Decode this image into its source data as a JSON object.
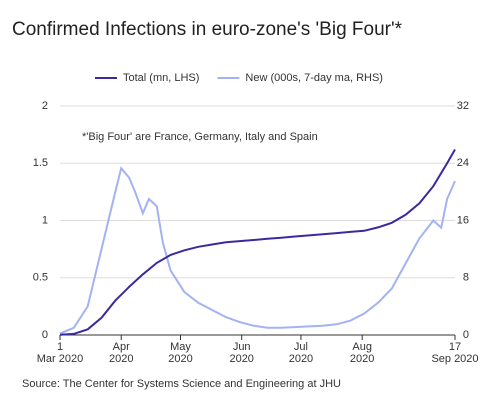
{
  "chart_data": {
    "type": "line",
    "title": "Confirmed Infections in euro-zone's 'Big Four'*",
    "annotation": "*'Big Four' are France, Germany, Italy and Spain",
    "source": "Source: The Center for Systems Science and Engineering at JHU",
    "xlim": [
      "2020-03-01",
      "2020-09-17"
    ],
    "xticks": [
      {
        "value": "2020-03-01",
        "label": "1\nMar 2020"
      },
      {
        "value": "2020-04",
        "label": "Apr\n2020"
      },
      {
        "value": "2020-05",
        "label": "May\n2020"
      },
      {
        "value": "2020-06",
        "label": "Jun\n2020"
      },
      {
        "value": "2020-07",
        "label": "Jul\n2020"
      },
      {
        "value": "2020-08",
        "label": "Aug\n2020"
      },
      {
        "value": "2020-09-17",
        "label": "17\nSep 2020"
      }
    ],
    "ylim": [
      0,
      2
    ],
    "yticks": [
      0,
      0.5,
      1,
      1.5,
      2
    ],
    "y2lim": [
      0,
      32
    ],
    "y2ticks": [
      0,
      8,
      16,
      24,
      32
    ],
    "grid": true,
    "series": [
      {
        "name": "Total (mn, LHS)",
        "color": "#3b2a9e",
        "x": [
          "2020-03-01",
          "2020-03-08",
          "2020-03-15",
          "2020-03-22",
          "2020-03-29",
          "2020-04-05",
          "2020-04-12",
          "2020-04-19",
          "2020-04-26",
          "2020-05-03",
          "2020-05-10",
          "2020-05-17",
          "2020-05-24",
          "2020-05-31",
          "2020-06-07",
          "2020-06-14",
          "2020-06-21",
          "2020-06-28",
          "2020-07-05",
          "2020-07-12",
          "2020-07-19",
          "2020-07-26",
          "2020-08-02",
          "2020-08-09",
          "2020-08-16",
          "2020-08-23",
          "2020-08-30",
          "2020-09-06",
          "2020-09-13",
          "2020-09-17"
        ],
        "values": [
          0.002,
          0.01,
          0.05,
          0.15,
          0.3,
          0.42,
          0.53,
          0.63,
          0.7,
          0.74,
          0.77,
          0.79,
          0.81,
          0.82,
          0.83,
          0.84,
          0.85,
          0.86,
          0.87,
          0.88,
          0.89,
          0.9,
          0.91,
          0.94,
          0.98,
          1.05,
          1.15,
          1.3,
          1.5,
          1.62
        ]
      },
      {
        "name": "New (000s, 7-day ma, RHS)",
        "color": "#a3b3f2",
        "axis": "y2",
        "x": [
          "2020-03-01",
          "2020-03-08",
          "2020-03-15",
          "2020-03-22",
          "2020-03-29",
          "2020-04-01",
          "2020-04-05",
          "2020-04-08",
          "2020-04-12",
          "2020-04-15",
          "2020-04-19",
          "2020-04-22",
          "2020-04-26",
          "2020-05-03",
          "2020-05-10",
          "2020-05-17",
          "2020-05-24",
          "2020-05-31",
          "2020-06-07",
          "2020-06-14",
          "2020-06-21",
          "2020-06-28",
          "2020-07-05",
          "2020-07-12",
          "2020-07-19",
          "2020-07-26",
          "2020-08-02",
          "2020-08-09",
          "2020-08-16",
          "2020-08-23",
          "2020-08-30",
          "2020-09-06",
          "2020-09-10",
          "2020-09-13",
          "2020-09-17"
        ],
        "values": [
          0.2,
          1,
          4,
          12,
          20,
          23.3,
          22,
          20,
          17,
          19,
          18,
          13,
          9,
          6,
          4.5,
          3.5,
          2.5,
          1.8,
          1.3,
          1,
          1,
          1.1,
          1.2,
          1.3,
          1.5,
          2,
          3,
          4.5,
          6.5,
          10,
          13.5,
          16,
          15,
          19,
          21.5
        ]
      }
    ]
  }
}
